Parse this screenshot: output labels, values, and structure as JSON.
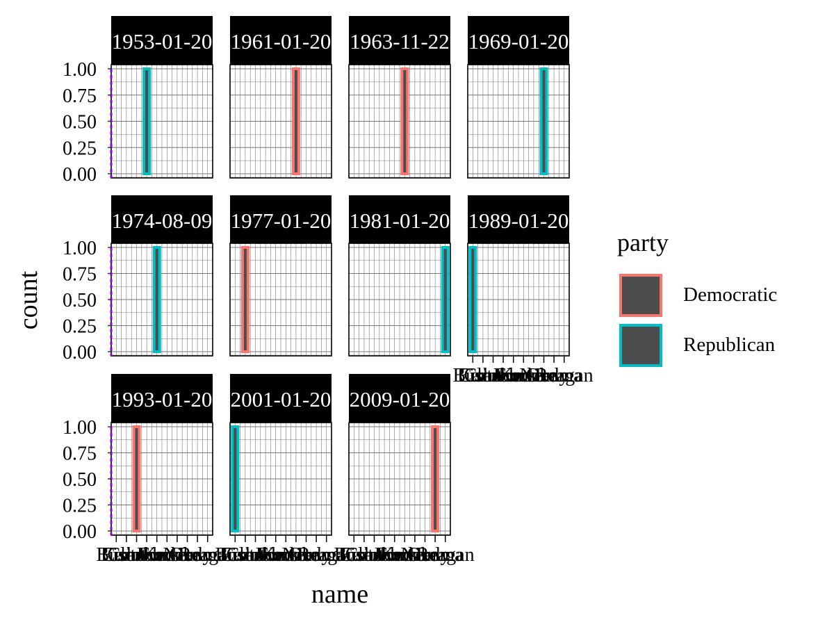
{
  "chart_data": {
    "type": "bar",
    "xlabel": "name",
    "ylabel": "count",
    "legend_title": "party",
    "legend_position": "right",
    "grid": true,
    "ylim": [
      0,
      1
    ],
    "y_ticks": [
      "0.00",
      "0.25",
      "0.50",
      "0.75",
      "1.00"
    ],
    "x_categories": [
      "Bush",
      "Carter",
      "Clinton",
      "Eisenhower",
      "Ford",
      "Johnson",
      "Kennedy",
      "Nixon",
      "Obama",
      "Reagan"
    ],
    "party_colors": {
      "Democratic": "#F8766D",
      "Republican": "#00BFC4"
    },
    "bar_fill": "#4d4d4d",
    "series": [
      {
        "name": "Democratic",
        "color": "#F8766D"
      },
      {
        "name": "Republican",
        "color": "#00BFC4"
      }
    ],
    "panels": [
      {
        "strip": "1953-01-20",
        "bars": [
          {
            "name": "Eisenhower",
            "party": "Republican",
            "count": 1
          }
        ]
      },
      {
        "strip": "1961-01-20",
        "bars": [
          {
            "name": "Kennedy",
            "party": "Democratic",
            "count": 1
          }
        ]
      },
      {
        "strip": "1963-11-22",
        "bars": [
          {
            "name": "Johnson",
            "party": "Democratic",
            "count": 1
          }
        ]
      },
      {
        "strip": "1969-01-20",
        "bars": [
          {
            "name": "Nixon",
            "party": "Republican",
            "count": 1
          }
        ]
      },
      {
        "strip": "1974-08-09",
        "bars": [
          {
            "name": "Ford",
            "party": "Republican",
            "count": 1
          }
        ]
      },
      {
        "strip": "1977-01-20",
        "bars": [
          {
            "name": "Carter",
            "party": "Democratic",
            "count": 1
          }
        ]
      },
      {
        "strip": "1981-01-20",
        "bars": [
          {
            "name": "Reagan",
            "party": "Republican",
            "count": 1
          }
        ]
      },
      {
        "strip": "1989-01-20",
        "bars": [
          {
            "name": "Bush",
            "party": "Republican",
            "count": 1
          }
        ]
      },
      {
        "strip": "1993-01-20",
        "bars": [
          {
            "name": "Clinton",
            "party": "Democratic",
            "count": 1
          }
        ]
      },
      {
        "strip": "2001-01-20",
        "bars": [
          {
            "name": "Bush",
            "party": "Republican",
            "count": 1
          }
        ]
      },
      {
        "strip": "2009-01-20",
        "bars": [
          {
            "name": "Obama",
            "party": "Democratic",
            "count": 1
          }
        ]
      }
    ]
  }
}
